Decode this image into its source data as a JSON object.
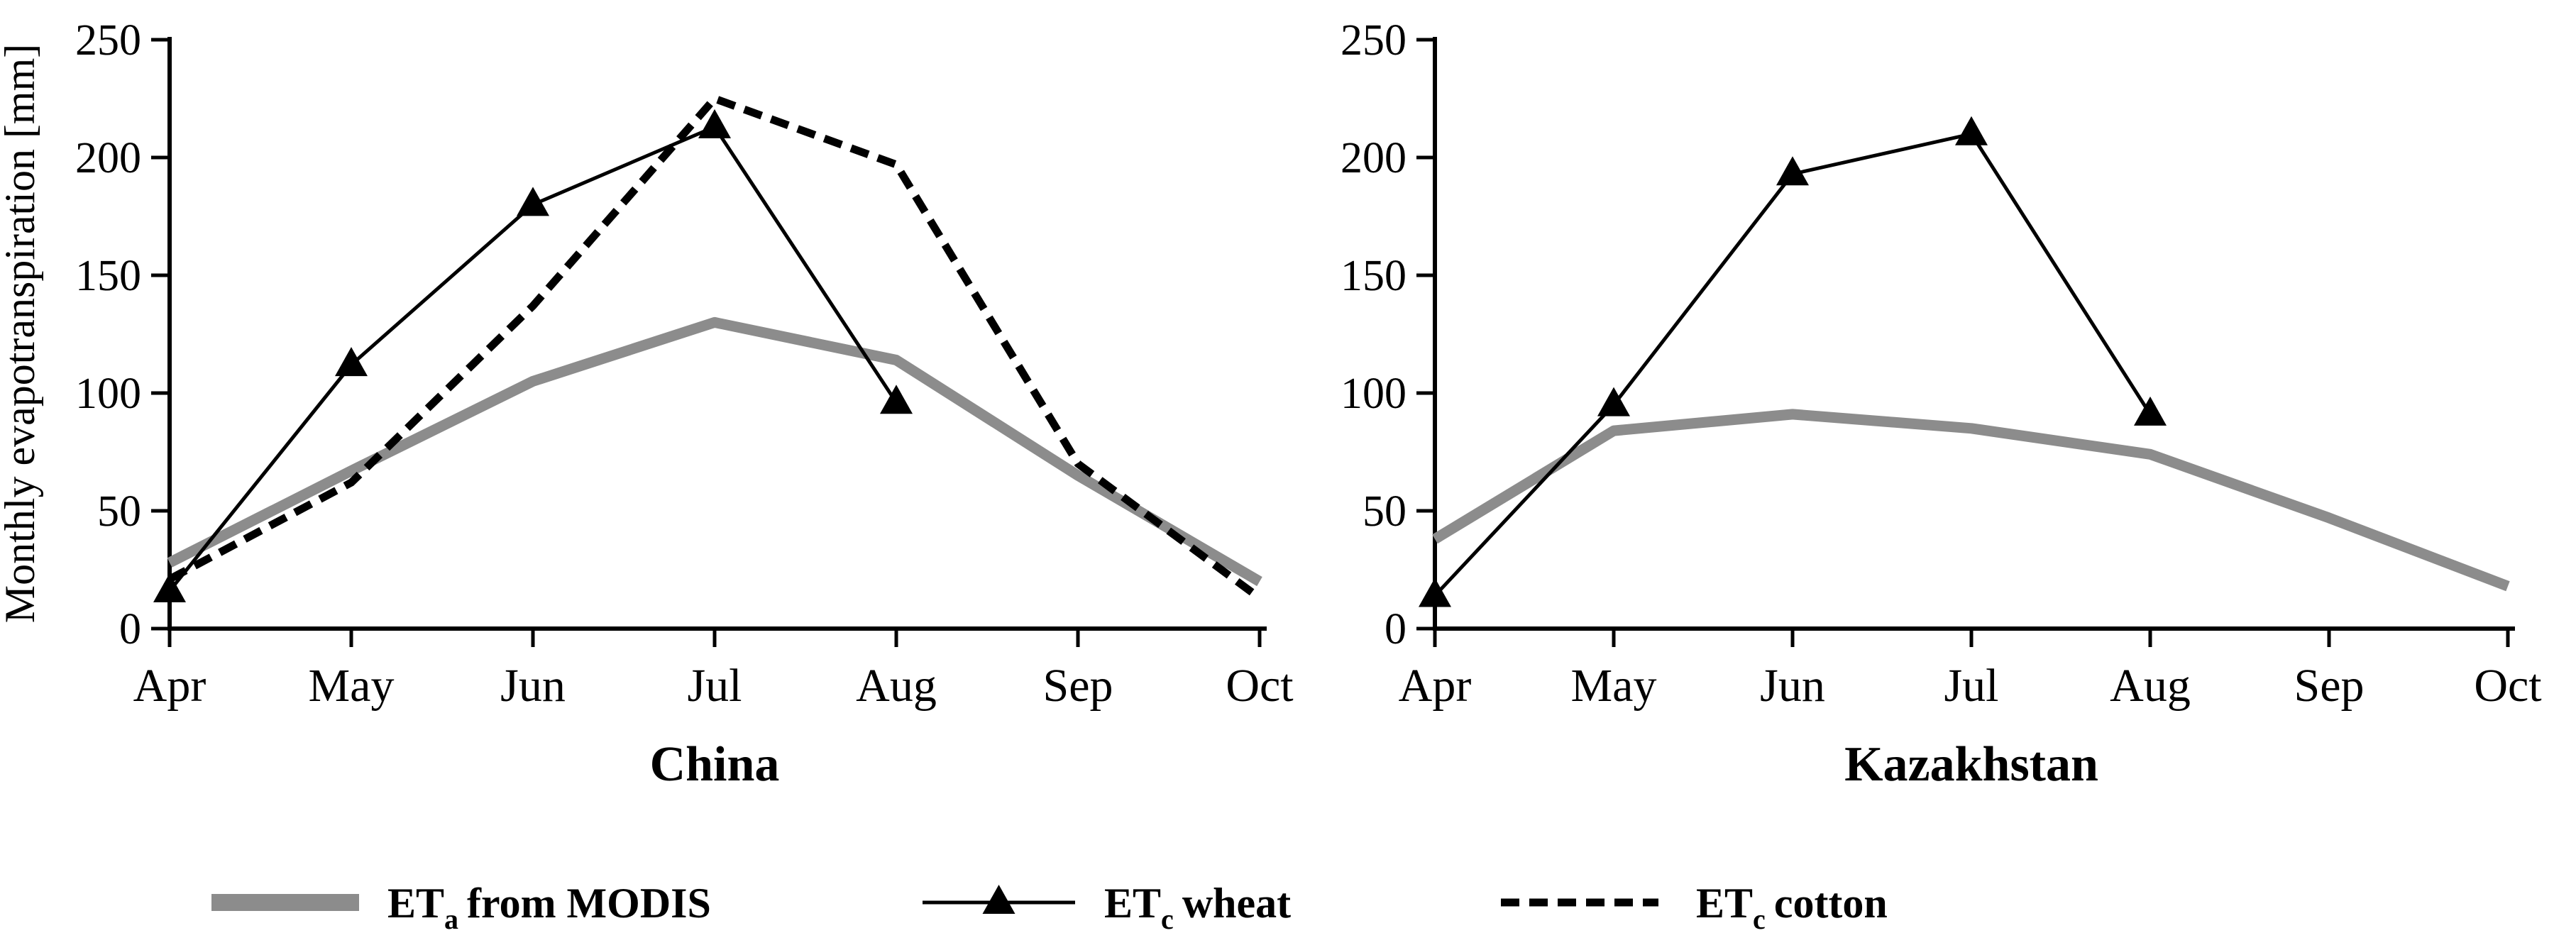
{
  "figure": {
    "ylabel": "Monthly evapotranspiration [mm]",
    "background_color": "#ffffff",
    "axis_color": "#000000",
    "colors": {
      "eta_gray": "#8c8c8c",
      "line_black": "#000000"
    }
  },
  "chart_data": [
    {
      "type": "line",
      "title": "China",
      "categories": [
        "Apr",
        "May",
        "Jun",
        "Jul",
        "Aug",
        "Sep",
        "Oct"
      ],
      "ylim": [
        0,
        250
      ],
      "yticks": [
        0,
        50,
        100,
        150,
        200,
        250
      ],
      "grid": false,
      "legend_position": "bottom",
      "series": [
        {
          "name": "ETa from MODIS",
          "style": "thick-gray",
          "values": [
            28,
            67,
            105,
            130,
            114,
            65,
            20
          ]
        },
        {
          "name": "ETc cotton",
          "style": "dashed-black",
          "values": [
            21,
            62,
            137,
            225,
            197,
            70,
            13
          ]
        },
        {
          "name": "ETc wheat",
          "style": "thin-black-triangles",
          "values": [
            16,
            112,
            180,
            213,
            96,
            null,
            null
          ]
        }
      ]
    },
    {
      "type": "line",
      "title": "Kazakhstan",
      "categories": [
        "Apr",
        "May",
        "Jun",
        "Jul",
        "Aug",
        "Sep",
        "Oct"
      ],
      "ylim": [
        0,
        250
      ],
      "yticks": [
        0,
        50,
        100,
        150,
        200,
        250
      ],
      "grid": false,
      "legend_position": "bottom",
      "series": [
        {
          "name": "ETa from MODIS",
          "style": "thick-gray",
          "values": [
            38,
            84,
            91,
            85,
            74,
            47,
            18
          ]
        },
        {
          "name": "ETc wheat",
          "style": "thin-black-triangles",
          "values": [
            14,
            95,
            193,
            210,
            91,
            null,
            null
          ]
        }
      ]
    }
  ],
  "legend": [
    {
      "prefix": "ET",
      "sub": "a",
      "rest": "from MODIS",
      "swatch": "thick-gray-line"
    },
    {
      "prefix": "ET",
      "sub": "c",
      "rest": "wheat",
      "swatch": "line-with-triangle"
    },
    {
      "prefix": "ET",
      "sub": "c",
      "rest": "cotton",
      "swatch": "dashed-line"
    }
  ]
}
